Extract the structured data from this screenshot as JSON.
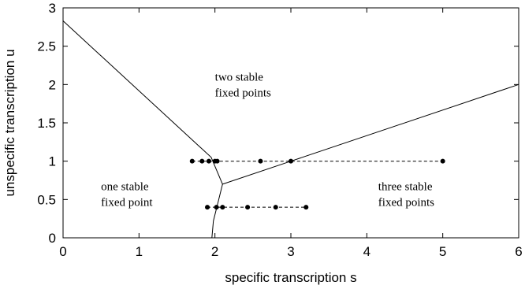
{
  "chart_data": {
    "type": "line",
    "title": "",
    "xlabel": "specific transcription s",
    "ylabel": "unspecific transcription u",
    "xlim": [
      0,
      6
    ],
    "ylim": [
      0,
      3
    ],
    "xticks": [
      "0",
      "1",
      "2",
      "3",
      "4",
      "5",
      "6"
    ],
    "yticks": [
      "0",
      "0.5",
      "1",
      "1.5",
      "2",
      "2.5",
      "3"
    ],
    "grid": false,
    "lines": [
      {
        "style": "solid",
        "points": [
          [
            0,
            2.83
          ],
          [
            1.95,
            1.05
          ],
          [
            2.1,
            0.7
          ]
        ]
      },
      {
        "style": "solid",
        "points": [
          [
            2.1,
            0.7
          ],
          [
            3.0,
            1.0
          ],
          [
            6.0,
            2.0
          ]
        ]
      },
      {
        "style": "solid",
        "points": [
          [
            2.1,
            0.7
          ],
          [
            2.05,
            0.5
          ],
          [
            1.98,
            0.22
          ],
          [
            1.96,
            0.0
          ]
        ]
      },
      {
        "style": "dashed",
        "points": [
          [
            1.7,
            1.0
          ],
          [
            5.0,
            1.0
          ]
        ]
      },
      {
        "style": "dashed",
        "points": [
          [
            1.9,
            0.4
          ],
          [
            3.2,
            0.4
          ]
        ]
      }
    ],
    "points": [
      [
        1.7,
        1.0
      ],
      [
        1.83,
        1.0
      ],
      [
        1.92,
        1.0
      ],
      [
        2.0,
        1.0
      ],
      [
        2.03,
        1.0
      ],
      [
        2.6,
        1.0
      ],
      [
        3.0,
        1.0
      ],
      [
        5.0,
        1.0
      ],
      [
        1.9,
        0.4
      ],
      [
        2.02,
        0.4
      ],
      [
        2.1,
        0.4
      ],
      [
        2.43,
        0.4
      ],
      [
        2.8,
        0.4
      ],
      [
        3.2,
        0.4
      ]
    ],
    "annotations": [
      {
        "lines": [
          "two stable",
          "fixed points"
        ],
        "x": 2.0,
        "y": 2.05
      },
      {
        "lines": [
          "one stable",
          "fixed point"
        ],
        "x": 0.5,
        "y": 0.62
      },
      {
        "lines": [
          "three stable",
          "fixed points"
        ],
        "x": 4.15,
        "y": 0.62
      }
    ]
  }
}
